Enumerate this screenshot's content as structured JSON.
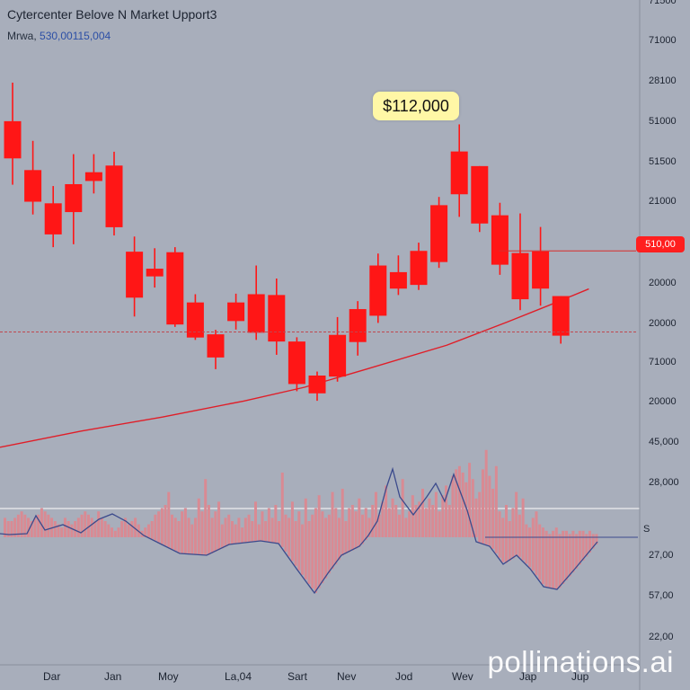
{
  "header": {
    "title": "Cytercenter Belove N Market Upport3",
    "subtitle_label": "Mrwa,",
    "subtitle_value": "530,00115,004"
  },
  "callout": {
    "text": "$112,000"
  },
  "level_tag": {
    "text": "510,00"
  },
  "watermark": {
    "text": "pollinations.ai"
  },
  "colors": {
    "candle": "#ff1616",
    "trend_line": "#e01e28",
    "volume_bar": "#d98a93",
    "oscillator_line": "#3b4a8c",
    "background": "#a8aebb"
  },
  "chart_data": {
    "type": "candlestick",
    "price_axis_ticks": [
      "71500",
      "71000",
      "28100",
      "51000",
      "51500",
      "21000",
      "510,00",
      "20000",
      "20000",
      "71000",
      "20000",
      "45,000",
      "28,000"
    ],
    "lower_axis_ticks": [
      "S",
      "27,00",
      "57,00",
      "22,00"
    ],
    "x_tick_labels": [
      "Dar",
      "Jan",
      "Moy",
      "La,04",
      "Sart",
      "Nev",
      "Jod",
      "Wev",
      "Jap",
      "Jup"
    ],
    "candles": [
      {
        "open": 20990,
        "close": 19590,
        "high": 22440,
        "low": 18600
      },
      {
        "open": 19150,
        "close": 17960,
        "high": 20250,
        "low": 17480
      },
      {
        "open": 17900,
        "close": 16730,
        "high": 18550,
        "low": 16250
      },
      {
        "open": 17570,
        "close": 18620,
        "high": 19750,
        "low": 16360
      },
      {
        "open": 18740,
        "close": 19070,
        "high": 19750,
        "low": 18270
      },
      {
        "open": 19320,
        "close": 17000,
        "high": 19840,
        "low": 16690
      },
      {
        "open": 16080,
        "close": 14350,
        "high": 16650,
        "low": 13640
      },
      {
        "open": 15440,
        "close": 15150,
        "high": 16210,
        "low": 14730
      },
      {
        "open": 16060,
        "close": 13340,
        "high": 16250,
        "low": 13250
      },
      {
        "open": 14170,
        "close": 12850,
        "high": 14480,
        "low": 12760
      },
      {
        "open": 12970,
        "close": 12100,
        "high": 13140,
        "low": 11660
      },
      {
        "open": 13470,
        "close": 14170,
        "high": 14500,
        "low": 13150
      },
      {
        "open": 14480,
        "close": 13030,
        "high": 15560,
        "low": 12760
      },
      {
        "open": 14450,
        "close": 12700,
        "high": 15070,
        "low": 12200
      },
      {
        "open": 12700,
        "close": 11100,
        "high": 12860,
        "low": 10830
      },
      {
        "open": 11420,
        "close": 10750,
        "high": 11570,
        "low": 10470
      },
      {
        "open": 11380,
        "close": 12950,
        "high": 13620,
        "low": 11190
      },
      {
        "open": 13920,
        "close": 12680,
        "high": 14220,
        "low": 12170
      },
      {
        "open": 15560,
        "close": 13670,
        "high": 16010,
        "low": 13400
      },
      {
        "open": 14690,
        "close": 15310,
        "high": 15940,
        "low": 14450
      },
      {
        "open": 14830,
        "close": 16110,
        "high": 16420,
        "low": 14640
      },
      {
        "open": 15690,
        "close": 17830,
        "high": 18140,
        "low": 15470
      },
      {
        "open": 18240,
        "close": 19850,
        "high": 20870,
        "low": 17390
      },
      {
        "open": 19300,
        "close": 17140,
        "high": 19300,
        "low": 16820
      },
      {
        "open": 17450,
        "close": 15590,
        "high": 17920,
        "low": 15210
      },
      {
        "open": 16030,
        "close": 14290,
        "high": 17520,
        "low": 13880
      },
      {
        "open": 16090,
        "close": 14690,
        "high": 17010,
        "low": 14050
      },
      {
        "open": 14410,
        "close": 12920,
        "high": 14410,
        "low": 12620
      }
    ],
    "trend_line": [
      [
        0,
        8720
      ],
      [
        4,
        9330
      ],
      [
        8,
        9860
      ],
      [
        12,
        10460
      ],
      [
        15,
        10980
      ],
      [
        18,
        11650
      ],
      [
        22,
        12560
      ],
      [
        25,
        13440
      ],
      [
        27,
        14050
      ],
      [
        29,
        14680
      ]
    ],
    "resistance_level": 16110,
    "support_level": 13060,
    "callout_price": 112000,
    "volume": [
      6,
      5,
      5,
      6,
      7,
      8,
      7,
      6,
      5,
      6,
      7,
      9,
      8,
      7,
      6,
      5,
      4,
      3,
      6,
      5,
      4,
      5,
      6,
      7,
      8,
      7,
      6,
      5,
      8,
      6,
      5,
      4,
      3,
      2,
      3,
      5,
      6,
      4,
      5,
      6,
      4,
      2,
      3,
      4,
      5,
      7,
      8,
      9,
      10,
      14,
      7,
      6,
      5,
      8,
      9,
      6,
      4,
      6,
      12,
      8,
      18,
      10,
      6,
      8,
      11,
      4,
      6,
      7,
      5,
      4,
      6,
      3,
      6,
      7,
      5,
      11,
      4,
      8,
      5,
      9,
      6,
      10,
      5,
      20,
      7,
      6,
      11,
      5,
      8,
      4,
      12,
      5,
      7,
      9,
      13,
      8,
      6,
      7,
      14,
      9,
      6,
      15,
      5,
      9,
      10,
      8,
      12,
      7,
      9,
      6,
      10,
      14,
      7,
      11,
      16,
      9,
      12,
      10,
      7,
      18,
      6,
      8,
      13,
      10,
      11,
      15,
      9,
      12,
      10,
      14,
      8,
      13,
      16,
      10,
      19,
      21,
      22,
      20,
      17,
      23,
      18,
      12,
      14,
      21,
      27,
      19,
      15,
      22,
      8,
      6,
      10,
      5,
      9,
      14,
      7,
      12,
      4,
      3,
      6,
      8,
      4,
      3,
      2,
      1,
      2,
      3,
      1,
      2,
      2,
      1,
      2,
      1,
      2,
      2,
      1,
      2,
      1,
      1
    ],
    "oscillator": [
      [
        0,
        4
      ],
      [
        10,
        3
      ],
      [
        30,
        4
      ],
      [
        40,
        24
      ],
      [
        50,
        8
      ],
      [
        70,
        14
      ],
      [
        90,
        5
      ],
      [
        110,
        20
      ],
      [
        125,
        26
      ],
      [
        140,
        18
      ],
      [
        160,
        2
      ],
      [
        180,
        -8
      ],
      [
        200,
        -18
      ],
      [
        230,
        -20
      ],
      [
        255,
        -8
      ],
      [
        290,
        -4
      ],
      [
        310,
        -7
      ],
      [
        330,
        -35
      ],
      [
        350,
        -62
      ],
      [
        365,
        -40
      ],
      [
        380,
        -20
      ],
      [
        400,
        -10
      ],
      [
        410,
        2
      ],
      [
        420,
        18
      ],
      [
        430,
        55
      ],
      [
        437,
        76
      ],
      [
        445,
        45
      ],
      [
        460,
        25
      ],
      [
        475,
        45
      ],
      [
        485,
        60
      ],
      [
        495,
        40
      ],
      [
        505,
        70
      ],
      [
        520,
        30
      ],
      [
        530,
        -5
      ],
      [
        545,
        -10
      ],
      [
        560,
        -30
      ],
      [
        575,
        -20
      ],
      [
        590,
        -35
      ],
      [
        605,
        -55
      ],
      [
        620,
        -58
      ],
      [
        640,
        -35
      ],
      [
        665,
        -5
      ]
    ]
  }
}
